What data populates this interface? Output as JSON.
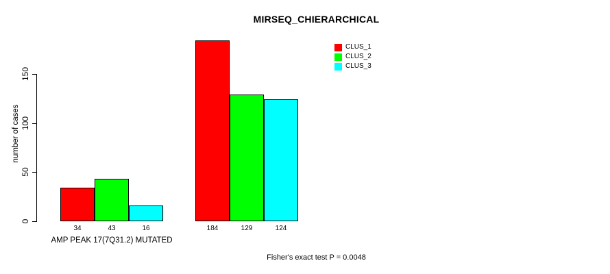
{
  "title": "MIRSEQ_CHIERARCHICAL",
  "y_axis": {
    "label": "number of cases",
    "ticks": [
      0,
      50,
      100,
      150
    ]
  },
  "legend": {
    "items": [
      {
        "label": "CLUS_1",
        "color": "#ff0000"
      },
      {
        "label": "CLUS_2",
        "color": "#00ff00"
      },
      {
        "label": "CLUS_3",
        "color": "#00ffff"
      }
    ]
  },
  "footer": "Fisher's exact test P = 0.0048",
  "chart_data": {
    "type": "bar",
    "title": "MIRSEQ_CHIERARCHICAL",
    "xlabel": "",
    "ylabel": "number of cases",
    "yticks": [
      0,
      50,
      100,
      150
    ],
    "ylim": [
      0,
      190
    ],
    "grid": false,
    "legend_position": "top-right",
    "series_names": [
      "CLUS_1",
      "CLUS_2",
      "CLUS_3"
    ],
    "series_colors": [
      "#ff0000",
      "#00ff00",
      "#00ffff"
    ],
    "groups": [
      {
        "label": "AMP PEAK 17(7Q31.2) MUTATED",
        "values": [
          34,
          43,
          16
        ]
      },
      {
        "label": "",
        "values": [
          184,
          129,
          124
        ]
      }
    ],
    "annotation": "Fisher's exact test P = 0.0048"
  }
}
